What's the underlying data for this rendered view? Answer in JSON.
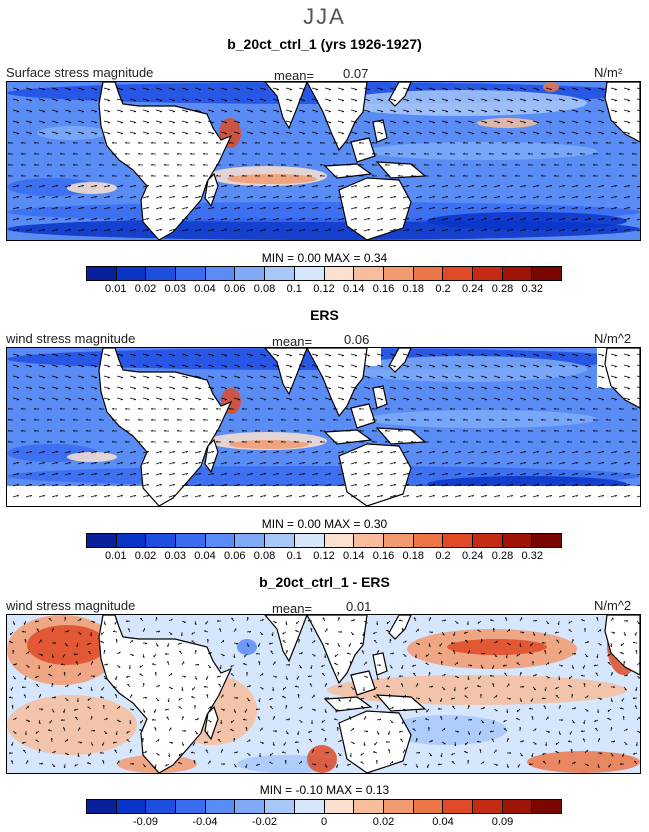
{
  "season": "JJA",
  "panels": [
    {
      "title": "b_20ct_ctrl_1 (yrs 1926-1927)",
      "left_label": "Surface stress magnitude",
      "mean_label": "mean=",
      "mean_value": "0.07",
      "unit": "N/m²",
      "min_label": "MIN =",
      "min_value": "0.00",
      "max_label": "MAX =",
      "max_value": "0.34",
      "ticks": [
        "0.01",
        "0.02",
        "0.03",
        "0.04",
        "0.06",
        "0.08",
        "0.1",
        "0.12",
        "0.14",
        "0.16",
        "0.18",
        "0.2",
        "0.24",
        "0.28",
        "0.32"
      ]
    },
    {
      "title": "ERS",
      "left_label": "wind stress magnitude",
      "mean_label": "mean=",
      "mean_value": "0.06",
      "unit": "N/m^2",
      "min_label": "MIN =",
      "min_value": "0.00",
      "max_label": "MAX =",
      "max_value": "0.30",
      "ticks": [
        "0.01",
        "0.02",
        "0.03",
        "0.04",
        "0.06",
        "0.08",
        "0.1",
        "0.12",
        "0.14",
        "0.16",
        "0.18",
        "0.2",
        "0.24",
        "0.28",
        "0.32"
      ]
    },
    {
      "title": "b_20ct_ctrl_1 - ERS",
      "left_label": "wind stress magnitude",
      "mean_label": "mean=",
      "mean_value": "0.01",
      "unit": "N/m^2",
      "min_label": "MIN =",
      "min_value": "-0.10",
      "max_label": "MAX =",
      "max_value": "0.13",
      "ticks": [
        "-0.09",
        "-0.04",
        "-0.02",
        "0",
        "0.02",
        "0.04",
        "0.09"
      ]
    }
  ],
  "colors": {
    "abs_scale": [
      "#08209a",
      "#0a34c8",
      "#1e4ee0",
      "#3a6cf0",
      "#5a8cf6",
      "#7eaaf8",
      "#a8c8fa",
      "#d6e6fc",
      "#fbe0cf",
      "#f7bd9c",
      "#f29a70",
      "#ec7546",
      "#e04a26",
      "#c42a14",
      "#a01408",
      "#7a0600"
    ],
    "diff_scale": [
      "#08209a",
      "#0a34c8",
      "#1e4ee0",
      "#3a6cf0",
      "#5a8cf6",
      "#7eaaf8",
      "#a8c8fa",
      "#d6e6fc",
      "#fbe0cf",
      "#f7bd9c",
      "#f29a70",
      "#ec7546",
      "#e04a26",
      "#c42a14",
      "#a01408",
      "#7a0600"
    ],
    "land": "#ffffff",
    "coast": "#000000"
  }
}
